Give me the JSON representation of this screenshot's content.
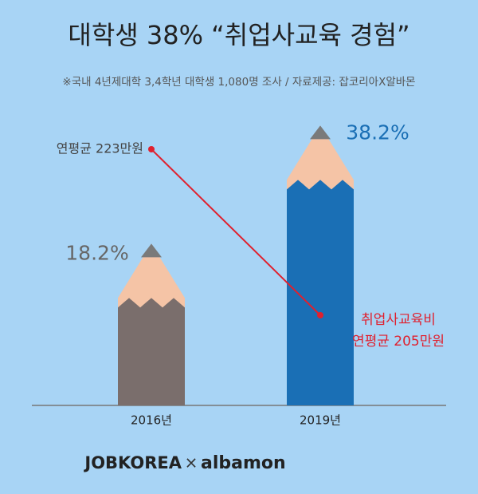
{
  "chart_data": {
    "type": "bar",
    "title": "대학생 38% “취업사교육 경험”",
    "subtitle": "※국내 4년제대학 3,4학년 대학생 1,080명 조사  / 자료제공: 잡코리아X알바몬",
    "categories": [
      "2016년",
      "2019년"
    ],
    "series": [
      {
        "values": [
          18.2,
          38.2
        ],
        "value_labels": [
          "18.2%",
          "38.2%"
        ],
        "colors": [
          "#7a6e6c",
          "#1a6fb5"
        ],
        "label_colors": [
          "#666666",
          "#1a6fb5"
        ]
      }
    ],
    "line": {
      "name": "취업사교육비",
      "values": [
        223,
        205
      ],
      "value_labels": [
        "연평균 223만원",
        "연평균 205만원"
      ],
      "color": "#e0202e"
    },
    "footer": {
      "left": "JOBKOREA",
      "separator": "×",
      "right": "albamon"
    }
  }
}
